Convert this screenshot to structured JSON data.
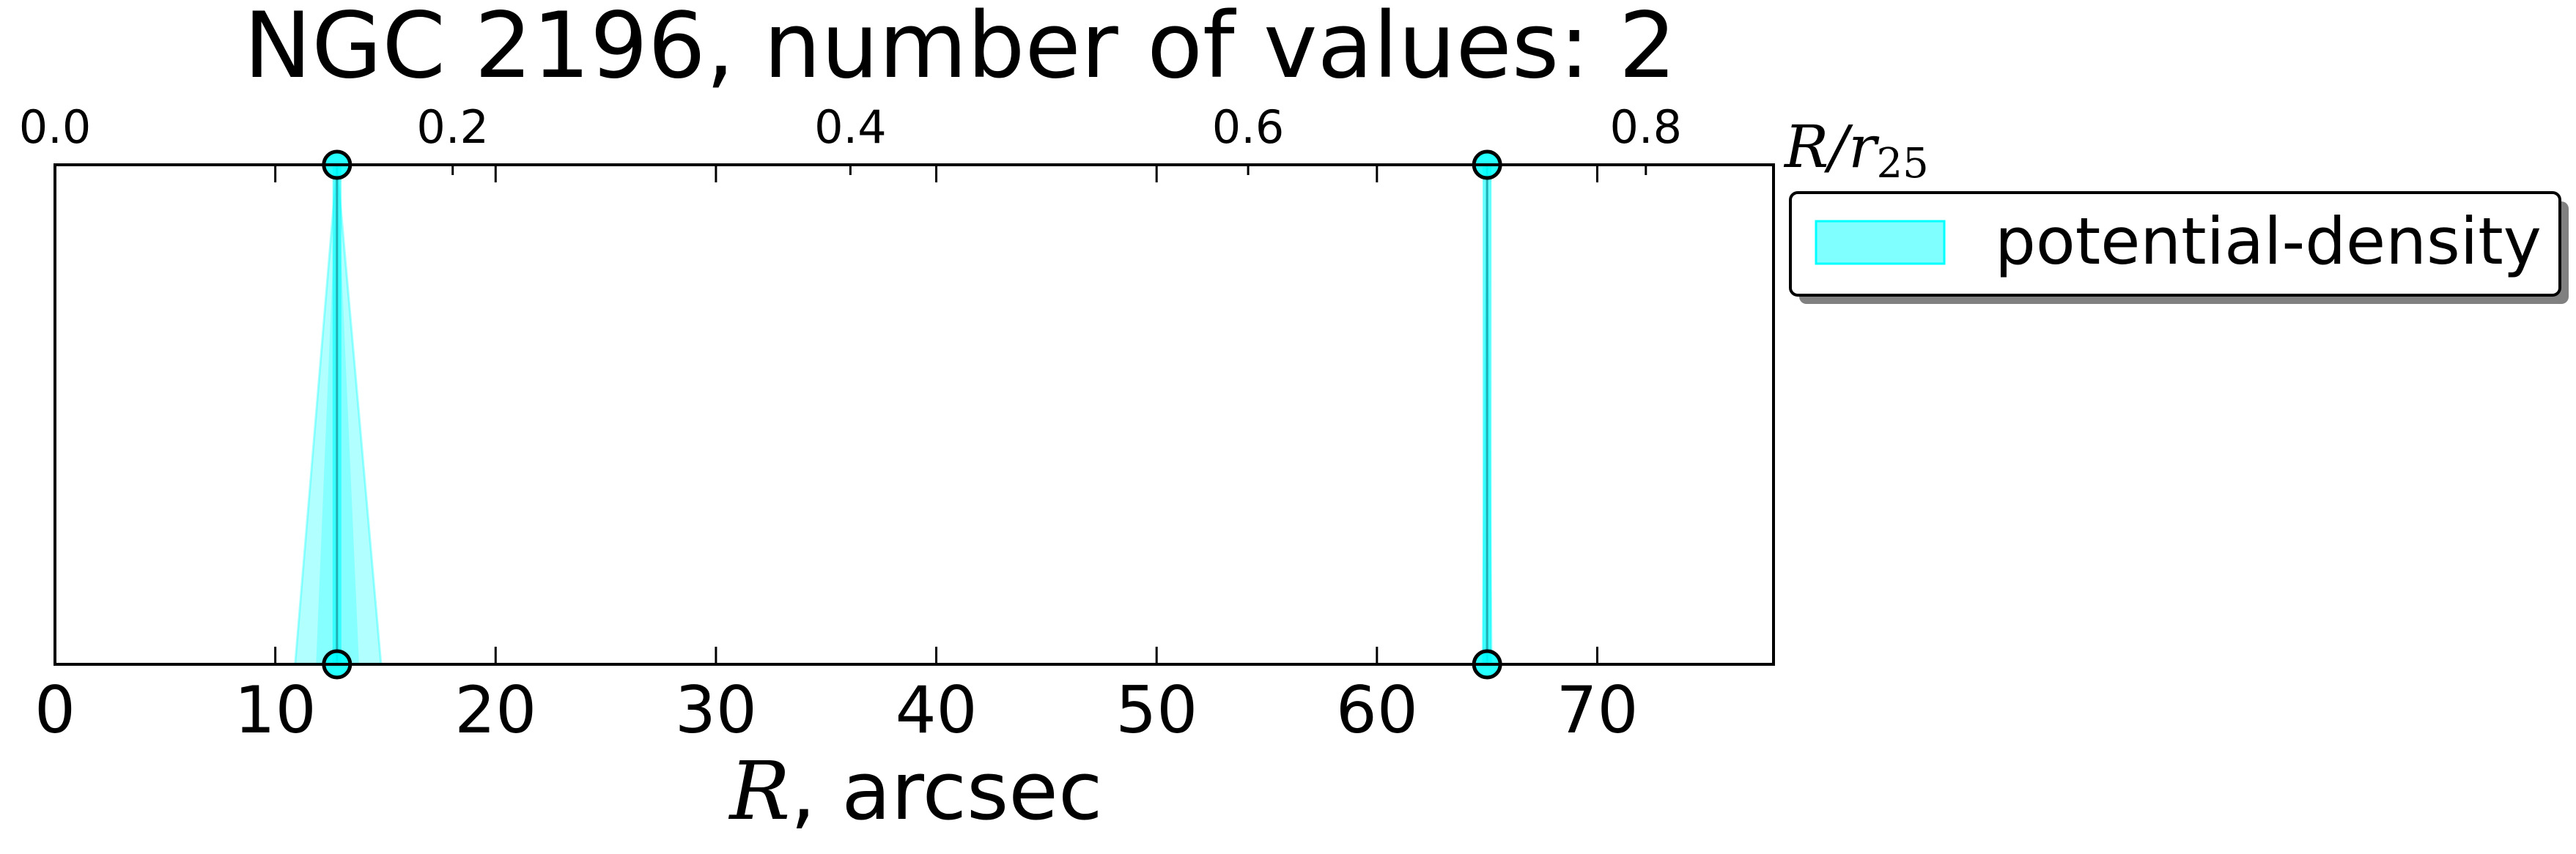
{
  "chart_data": {
    "type": "scatter",
    "title": "NGC 2196, number of values: 2",
    "xlabel": {
      "var": "R",
      "unit": ", arcsec"
    },
    "top_xlabel": {
      "var": "R",
      "sep": "/",
      "sym": "r",
      "sub": "25"
    },
    "xlim": [
      0,
      78
    ],
    "top_xlim": [
      0,
      0.8642
    ],
    "xticks": [
      0,
      10,
      20,
      30,
      40,
      50,
      60,
      70
    ],
    "xtick_labels": [
      "0",
      "10",
      "20",
      "30",
      "40",
      "50",
      "60",
      "70"
    ],
    "top_xticks": [
      0.0,
      0.2,
      0.4,
      0.6,
      0.8
    ],
    "top_xtick_labels": [
      "0.0",
      "0.2",
      "0.4",
      "0.6",
      "0.8"
    ],
    "grid": false,
    "legend": {
      "position": "outside-right",
      "entries": [
        "potential-density"
      ]
    },
    "series": [
      {
        "name": "potential-density",
        "color": "#00FFFF",
        "points": [
          {
            "x": 12.8,
            "x_low": 10.9,
            "x_high": 14.8
          },
          {
            "x": 65.0,
            "x_low": 64.8,
            "x_high": 65.2
          }
        ]
      }
    ]
  }
}
